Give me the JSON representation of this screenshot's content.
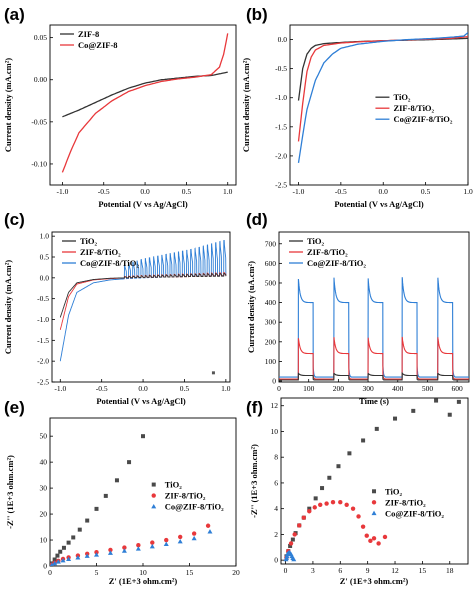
{
  "chart_data": [
    {
      "id": "a",
      "panel_label": "(a)",
      "type": "line",
      "xlabel": "Potential (V vs Ag/AgCl)",
      "ylabel": "Current density (mA.cm²)",
      "xlim": [
        -1.15,
        1.1
      ],
      "ylim": [
        -0.125,
        0.065
      ],
      "xticks": [
        "-1.0",
        "-0.5",
        "0.0",
        "0.5",
        "1.0"
      ],
      "xtick_values": [
        -1.0,
        -0.5,
        0.0,
        0.5,
        1.0
      ],
      "yticks": [
        "0.05",
        "0.00",
        "-0.05",
        "-0.10"
      ],
      "ytick_values": [
        0.05,
        0.0,
        -0.05,
        -0.1
      ],
      "legend_position": "top-left",
      "series": [
        {
          "name": "ZIF-8",
          "color": "#333333",
          "x": [
            -1.0,
            -0.8,
            -0.6,
            -0.4,
            -0.2,
            0.0,
            0.2,
            0.4,
            0.6,
            0.8,
            1.0
          ],
          "y": [
            -0.044,
            -0.036,
            -0.027,
            -0.018,
            -0.01,
            -0.004,
            0.0,
            0.002,
            0.004,
            0.005,
            0.009
          ]
        },
        {
          "name": "Co@ZIF-8",
          "color": "#e8383b",
          "x": [
            -1.0,
            -0.9,
            -0.8,
            -0.6,
            -0.4,
            -0.2,
            0.0,
            0.2,
            0.4,
            0.6,
            0.8,
            0.9,
            0.95,
            1.0
          ],
          "y": [
            -0.11,
            -0.085,
            -0.063,
            -0.04,
            -0.025,
            -0.014,
            -0.007,
            -0.002,
            0.001,
            0.003,
            0.006,
            0.015,
            0.03,
            0.055
          ]
        }
      ]
    },
    {
      "id": "b",
      "panel_label": "(b)",
      "type": "line",
      "xlabel": "Potential (V vs Ag/AgCl)",
      "ylabel": "Current density (mA.cm²)",
      "xlim": [
        -1.1,
        1.0
      ],
      "ylim": [
        -2.5,
        0.25
      ],
      "xticks": [
        "-1.0",
        "-0.5",
        "0.0",
        "0.5",
        "1.0"
      ],
      "xtick_values": [
        -1.0,
        -0.5,
        0.0,
        0.5,
        1.0
      ],
      "yticks": [
        "0.0",
        "-0.5",
        "-1.0",
        "-1.5",
        "-2.0",
        "-2.5"
      ],
      "ytick_values": [
        0.0,
        -0.5,
        -1.0,
        -1.5,
        -2.0,
        -2.5
      ],
      "legend_position": "center-right",
      "series": [
        {
          "name": "TiO₂",
          "color": "#333333",
          "x": [
            -1.0,
            -0.95,
            -0.9,
            -0.85,
            -0.8,
            -0.7,
            -0.5,
            -0.3,
            0.0,
            0.3,
            0.6,
            0.8,
            1.0
          ],
          "y": [
            -1.05,
            -0.5,
            -0.25,
            -0.15,
            -0.1,
            -0.07,
            -0.05,
            -0.035,
            -0.02,
            -0.01,
            0.0,
            0.01,
            0.02
          ]
        },
        {
          "name": "ZIF-8/TiO₂",
          "color": "#e8383b",
          "x": [
            -1.0,
            -0.95,
            -0.9,
            -0.85,
            -0.8,
            -0.7,
            -0.5,
            -0.3,
            0.0,
            0.3,
            0.6,
            0.8,
            1.0
          ],
          "y": [
            -1.75,
            -1.1,
            -0.55,
            -0.3,
            -0.18,
            -0.1,
            -0.06,
            -0.04,
            -0.02,
            -0.005,
            0.01,
            0.02,
            0.05
          ]
        },
        {
          "name": "Co@ZIF-8/TiO₂",
          "color": "#2f7fd6",
          "x": [
            -1.0,
            -0.95,
            -0.9,
            -0.8,
            -0.7,
            -0.6,
            -0.5,
            -0.3,
            0.0,
            0.3,
            0.6,
            0.8,
            0.95,
            1.0
          ],
          "y": [
            -2.12,
            -1.65,
            -1.2,
            -0.7,
            -0.4,
            -0.25,
            -0.15,
            -0.08,
            -0.03,
            0.0,
            0.02,
            0.04,
            0.06,
            0.12
          ]
        }
      ]
    },
    {
      "id": "c",
      "panel_label": "(c)",
      "type": "line",
      "xlabel": "Potential (V vs Ag/AgCl)",
      "ylabel": "Current density (mA.cm²)",
      "xlim": [
        -1.1,
        1.05
      ],
      "ylim": [
        -2.5,
        1.1
      ],
      "xticks": [
        "-1.0",
        "-0.5",
        "0.0",
        "0.5",
        "1.0"
      ],
      "xtick_values": [
        -1.0,
        -0.5,
        0.0,
        0.5,
        1.0
      ],
      "yticks": [
        "1.0",
        "0.5",
        "0.0",
        "-0.5",
        "-1.0",
        "-1.5",
        "-2.0",
        "-2.5"
      ],
      "ytick_values": [
        1.0,
        0.5,
        0.0,
        -0.5,
        -1.0,
        -1.5,
        -2.0,
        -2.5
      ],
      "legend_position": "top-left",
      "annotation_point": {
        "x": 0.85,
        "y": -2.28
      },
      "chopped_light": {
        "start": -0.25,
        "period": 0.05
      },
      "series": [
        {
          "name": "TiO₂",
          "color": "#333333",
          "x": [
            -1.0,
            -0.9,
            -0.8,
            -0.6,
            -0.4,
            -0.2,
            0.0,
            0.3,
            0.6,
            1.0
          ],
          "y": [
            -0.95,
            -0.35,
            -0.12,
            -0.04,
            -0.01,
            0.0,
            0.01,
            0.02,
            0.03,
            0.04
          ],
          "on_light_increment": [
            0.0,
            0.0,
            0.0,
            0.0,
            0.0,
            0.03,
            0.04,
            0.05,
            0.06,
            0.07
          ]
        },
        {
          "name": "ZIF-8/TiO₂",
          "color": "#e8383b",
          "x": [
            -1.0,
            -0.9,
            -0.8,
            -0.6,
            -0.4,
            -0.2,
            0.0,
            0.3,
            0.6,
            1.0
          ],
          "y": [
            -1.25,
            -0.45,
            -0.15,
            -0.05,
            -0.02,
            0.0,
            0.01,
            0.02,
            0.03,
            0.05
          ],
          "on_light_increment": [
            0.0,
            0.0,
            0.0,
            0.0,
            0.0,
            0.04,
            0.05,
            0.06,
            0.07,
            0.08
          ]
        },
        {
          "name": "Co@ZIF-8/TiO₂",
          "color": "#2f7fd6",
          "x": [
            -1.0,
            -0.9,
            -0.8,
            -0.6,
            -0.4,
            -0.2,
            0.0,
            0.3,
            0.6,
            1.0
          ],
          "y": [
            -2.0,
            -0.9,
            -0.35,
            -0.12,
            -0.05,
            -0.02,
            0.0,
            0.02,
            0.04,
            0.06
          ],
          "on_light_increment": [
            0.0,
            0.0,
            0.0,
            0.0,
            0.0,
            0.35,
            0.45,
            0.55,
            0.65,
            0.85
          ]
        }
      ]
    },
    {
      "id": "d",
      "panel_label": "(d)",
      "type": "line",
      "xlabel": "Time (s)",
      "ylabel": "Current density (uA.cm²)",
      "xlim": [
        0,
        640
      ],
      "ylim": [
        -5,
        760
      ],
      "xticks": [
        "0",
        "100",
        "200",
        "300",
        "400",
        "500",
        "600"
      ],
      "xtick_values": [
        0,
        100,
        200,
        300,
        400,
        500,
        600
      ],
      "yticks": [
        "700",
        "600",
        "500",
        "400",
        "300",
        "200",
        "100",
        "0"
      ],
      "ytick_values": [
        700,
        600,
        500,
        400,
        300,
        200,
        100,
        0
      ],
      "legend_position": "top-left",
      "light_on_intervals": [
        [
          65,
          115
        ],
        [
          185,
          235
        ],
        [
          300,
          350
        ],
        [
          415,
          465
        ],
        [
          535,
          585
        ]
      ],
      "series": [
        {
          "name": "TiO₂",
          "color": "#333333",
          "spike": 40,
          "plateau": 28,
          "dark": 5
        },
        {
          "name": "ZIF-8/TiO₂",
          "color": "#e8383b",
          "spike": 225,
          "plateau": 140,
          "dark": 10
        },
        {
          "name": "Co@ZIF-8/TiO₂",
          "color": "#2f7fd6",
          "spike": 530,
          "plateau": 400,
          "dark": 20
        }
      ]
    },
    {
      "id": "e",
      "panel_label": "(e)",
      "type": "scatter",
      "xlabel": "Z' (1E+3 ohm.cm²)",
      "ylabel": "-Z'' (1E+3 ohm.cm²)",
      "xlim": [
        0,
        20
      ],
      "ylim": [
        0,
        57
      ],
      "xticks": [
        "0",
        "5",
        "10",
        "15",
        "20"
      ],
      "xtick_values": [
        0,
        5,
        10,
        15,
        20
      ],
      "yticks": [
        "0",
        "10",
        "20",
        "30",
        "40",
        "50"
      ],
      "ytick_values": [
        0,
        10,
        20,
        30,
        40,
        50
      ],
      "legend_position": "center-right",
      "series": [
        {
          "name": "TiO₂",
          "color": "#4a4a4a",
          "marker": "square",
          "x": [
            0.2,
            0.5,
            0.8,
            1.1,
            1.5,
            2.0,
            2.5,
            3.2,
            4.0,
            5.0,
            6.0,
            7.2,
            8.5,
            10.0
          ],
          "y": [
            1.0,
            2.5,
            4.0,
            5.5,
            7.0,
            9.0,
            11.0,
            14.0,
            17.5,
            22.0,
            27.0,
            33.0,
            40.0,
            50.0
          ]
        },
        {
          "name": "ZIF-8/TiO₂",
          "color": "#e8383b",
          "marker": "circle",
          "x": [
            0.2,
            0.5,
            0.9,
            1.4,
            2.0,
            3.0,
            4.0,
            5.0,
            6.5,
            8.0,
            9.5,
            11.0,
            12.5,
            14.0,
            15.5,
            17.0
          ],
          "y": [
            0.5,
            1.2,
            2.0,
            2.7,
            3.3,
            4.0,
            4.7,
            5.3,
            6.2,
            7.1,
            8.0,
            9.0,
            10.0,
            11.2,
            12.5,
            15.5
          ]
        },
        {
          "name": "Co@ZIF-8/TiO₂",
          "color": "#2f7fd6",
          "marker": "triangle",
          "x": [
            0.2,
            0.5,
            0.9,
            1.4,
            2.0,
            3.0,
            4.0,
            5.0,
            6.5,
            8.0,
            9.5,
            11.0,
            12.5,
            14.0,
            15.5,
            17.2
          ],
          "y": [
            0.4,
            1.0,
            1.6,
            2.1,
            2.6,
            3.2,
            3.8,
            4.3,
            5.0,
            5.8,
            6.6,
            7.5,
            8.4,
            9.4,
            10.6,
            13.2
          ]
        }
      ]
    },
    {
      "id": "f",
      "panel_label": "(f)",
      "type": "scatter",
      "xlabel": "Z' (1E+3 ohm.cm²)",
      "ylabel": "-Z'' (1E+3 ohm.cm²)",
      "xlim": [
        -0.5,
        20
      ],
      "ylim": [
        -0.3,
        12.6
      ],
      "xticks": [
        "0",
        "3",
        "6",
        "9",
        "12",
        "15",
        "18"
      ],
      "xtick_values": [
        0,
        3,
        6,
        9,
        12,
        15,
        18
      ],
      "yticks": [
        "0",
        "2",
        "4",
        "6",
        "8",
        "10",
        "12"
      ],
      "ytick_values": [
        0,
        2,
        4,
        6,
        8,
        10,
        12
      ],
      "legend_position": "center-right",
      "series": [
        {
          "name": "TiO₂",
          "color": "#4a4a4a",
          "marker": "square",
          "x": [
            0.1,
            0.3,
            0.5,
            0.8,
            1.1,
            1.5,
            2.0,
            2.6,
            3.3,
            4.0,
            4.8,
            5.8,
            7.0,
            8.5,
            10.0,
            12.0,
            14.0,
            16.5,
            18.0,
            19.0
          ],
          "y": [
            0.3,
            0.7,
            1.1,
            1.6,
            2.1,
            2.7,
            3.3,
            4.0,
            4.8,
            5.6,
            6.4,
            7.3,
            8.3,
            9.3,
            10.2,
            11.0,
            11.6,
            12.4,
            11.3,
            12.3
          ]
        },
        {
          "name": "ZIF-8/TiO₂",
          "color": "#e8383b",
          "marker": "circle",
          "x": [
            0.1,
            0.3,
            0.6,
            1.0,
            1.5,
            2.0,
            2.6,
            3.2,
            3.8,
            4.5,
            5.2,
            6.0,
            6.7,
            7.4,
            8.0,
            8.5,
            8.9,
            9.3,
            9.7,
            10.2,
            10.9
          ],
          "y": [
            0.2,
            0.7,
            1.3,
            2.0,
            2.7,
            3.3,
            3.8,
            4.1,
            4.3,
            4.4,
            4.5,
            4.5,
            4.3,
            4.0,
            3.4,
            2.6,
            1.9,
            1.5,
            1.7,
            1.3,
            1.8
          ]
        },
        {
          "name": "Co@ZIF-8/TiO₂",
          "color": "#2f7fd6",
          "marker": "triangle",
          "x": [
            0.05,
            0.1,
            0.15,
            0.2,
            0.3,
            0.4,
            0.5,
            0.6,
            0.7,
            0.8,
            0.9
          ],
          "y": [
            0.05,
            0.15,
            0.3,
            0.45,
            0.55,
            0.6,
            0.55,
            0.45,
            0.3,
            0.15,
            0.05
          ]
        }
      ]
    }
  ]
}
